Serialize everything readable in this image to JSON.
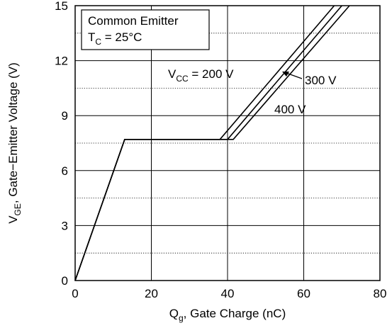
{
  "chart_data": {
    "type": "line",
    "title": "",
    "xlabel": {
      "main": "Q",
      "sub": "g",
      "rest": ", Gate Charge (nC)"
    },
    "ylabel": {
      "main": "V",
      "sub": "GE",
      "rest": ", Gate−Emitter Voltage (V)"
    },
    "xlim": [
      0,
      80
    ],
    "ylim": [
      0,
      15
    ],
    "x_ticks": [
      0,
      20,
      40,
      60,
      80
    ],
    "y_ticks": [
      0,
      3,
      6,
      9,
      12,
      15
    ],
    "grid": true,
    "minor_grid_y": [
      1.5,
      4.5,
      7.5,
      10.5,
      13.5
    ],
    "legend_box": {
      "line1": "Common Emitter",
      "line2_main": "T",
      "line2_sub": "C",
      "line2_rest": " = 25°C"
    },
    "series": [
      {
        "name": "V_CC = 200 V",
        "x": [
          0,
          13,
          38,
          68
        ],
        "y": [
          0,
          7.7,
          7.7,
          15
        ]
      },
      {
        "name": "300 V",
        "x": [
          0,
          13,
          40,
          70
        ],
        "y": [
          0,
          7.7,
          7.7,
          15
        ]
      },
      {
        "name": "400 V",
        "x": [
          0,
          13,
          41.5,
          72
        ],
        "y": [
          0,
          7.7,
          7.7,
          15
        ]
      }
    ],
    "annotations": {
      "vcc_main": "V",
      "vcc_sub": "CC",
      "vcc_rest": " = 200 V",
      "v300": "300 V",
      "v400": "400 V"
    }
  }
}
